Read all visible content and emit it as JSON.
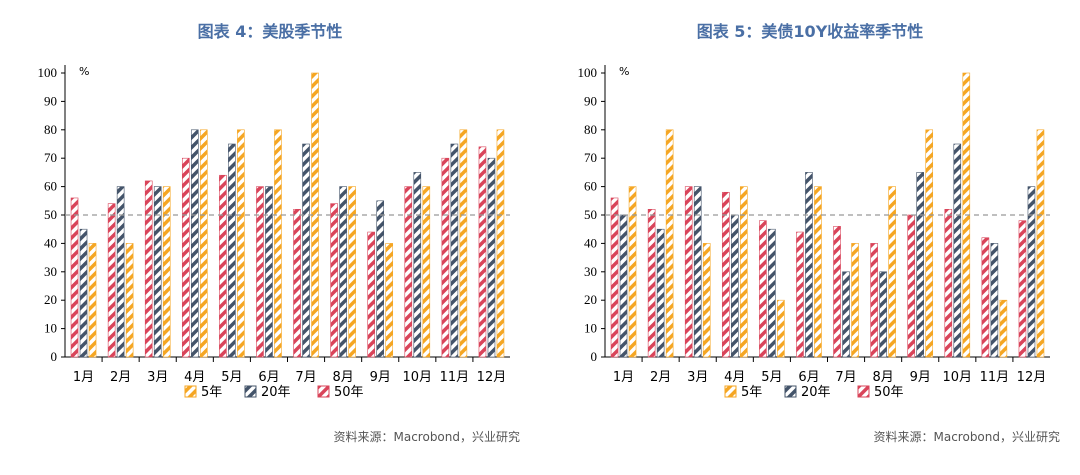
{
  "colors": {
    "5y": "#f5a623",
    "20y": "#44546a",
    "50y": "#d9445a",
    "title": "#4a6fa5",
    "refline": "#999999"
  },
  "chart_data": [
    {
      "type": "bar",
      "title": "图表 4：美股季节性",
      "unit": "%",
      "categories": [
        "1月",
        "2月",
        "3月",
        "4月",
        "5月",
        "6月",
        "7月",
        "8月",
        "9月",
        "10月",
        "11月",
        "12月"
      ],
      "series": [
        {
          "name": "50年",
          "color_key": "50y",
          "values": [
            56,
            54,
            62,
            70,
            64,
            60,
            52,
            54,
            44,
            60,
            70,
            74
          ]
        },
        {
          "name": "20年",
          "color_key": "20y",
          "values": [
            45,
            60,
            60,
            80,
            75,
            60,
            75,
            60,
            55,
            65,
            75,
            70
          ]
        },
        {
          "name": "5年",
          "color_key": "5y",
          "values": [
            40,
            40,
            60,
            80,
            80,
            80,
            100,
            60,
            40,
            60,
            80,
            80
          ]
        }
      ],
      "ylim": [
        0,
        100
      ],
      "yticks": [
        0,
        10,
        20,
        30,
        40,
        50,
        60,
        70,
        80,
        90,
        100
      ],
      "reference_line": 50,
      "legend": [
        "5年",
        "20年",
        "50年"
      ],
      "legend_position": "bottom",
      "source": "资料来源：Macrobond，兴业研究"
    },
    {
      "type": "bar",
      "title": "图表 5：美债10Y收益率季节性",
      "unit": "%",
      "categories": [
        "1月",
        "2月",
        "3月",
        "4月",
        "5月",
        "6月",
        "7月",
        "8月",
        "9月",
        "10月",
        "11月",
        "12月"
      ],
      "series": [
        {
          "name": "50年",
          "color_key": "50y",
          "values": [
            56,
            52,
            60,
            58,
            48,
            44,
            46,
            40,
            50,
            52,
            42,
            48
          ]
        },
        {
          "name": "20年",
          "color_key": "20y",
          "values": [
            50,
            45,
            60,
            50,
            45,
            65,
            30,
            30,
            65,
            75,
            40,
            60
          ]
        },
        {
          "name": "5年",
          "color_key": "5y",
          "values": [
            60,
            80,
            40,
            60,
            20,
            60,
            40,
            60,
            80,
            100,
            20,
            80
          ]
        }
      ],
      "ylim": [
        0,
        100
      ],
      "yticks": [
        0,
        10,
        20,
        30,
        40,
        50,
        60,
        70,
        80,
        90,
        100
      ],
      "reference_line": 50,
      "legend": [
        "5年",
        "20年",
        "50年"
      ],
      "legend_position": "bottom",
      "source": "资料来源：Macrobond，兴业研究"
    }
  ]
}
